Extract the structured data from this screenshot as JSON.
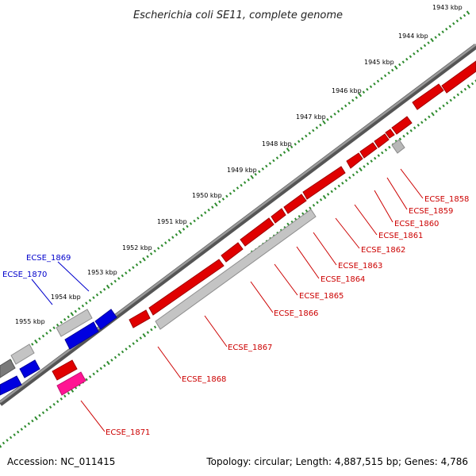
{
  "title": "Escherichia coli SE11, complete genome",
  "footer": {
    "accession": "Accession: NC_011415",
    "summary": "Topology: circular; Length: 4,887,515 bp; Genes: 4,786"
  },
  "colors": {
    "background": "#ffffff",
    "backbone": "#808080",
    "scale_dots": "#2e8b2e",
    "gene_forward": "#ff0000",
    "gene_reverse": "#0000ff",
    "gene_other": "#c0c0c0",
    "gene_rna": "#ff1493",
    "label_red": "#cc0000",
    "label_blue": "#0000cc"
  },
  "scale_ticks": [
    {
      "label": "1943 kbp"
    },
    {
      "label": "1944 kbp"
    },
    {
      "label": "1945 kbp"
    },
    {
      "label": "1946 kbp"
    },
    {
      "label": "1947 kbp"
    },
    {
      "label": "1948 kbp"
    },
    {
      "label": "1949 kbp"
    },
    {
      "label": "1950 kbp"
    },
    {
      "label": "1951 kbp"
    },
    {
      "label": "1952 kbp"
    },
    {
      "label": "1953 kbp"
    },
    {
      "label": "1954 kbp"
    },
    {
      "label": "1955 kbp"
    }
  ],
  "gene_labels": [
    {
      "text": "ECSE_1858",
      "color": "red"
    },
    {
      "text": "ECSE_1859",
      "color": "red"
    },
    {
      "text": "ECSE_1860",
      "color": "red"
    },
    {
      "text": "ECSE_1861",
      "color": "red"
    },
    {
      "text": "ECSE_1862",
      "color": "red"
    },
    {
      "text": "ECSE_1863",
      "color": "red"
    },
    {
      "text": "ECSE_1864",
      "color": "red"
    },
    {
      "text": "ECSE_1865",
      "color": "red"
    },
    {
      "text": "ECSE_1866",
      "color": "red"
    },
    {
      "text": "ECSE_1867",
      "color": "red"
    },
    {
      "text": "ECSE_1868",
      "color": "red"
    },
    {
      "text": "ECSE_1869",
      "color": "blue"
    },
    {
      "text": "ECSE_1870",
      "color": "blue"
    },
    {
      "text": "ECSE_1871",
      "color": "red"
    }
  ]
}
